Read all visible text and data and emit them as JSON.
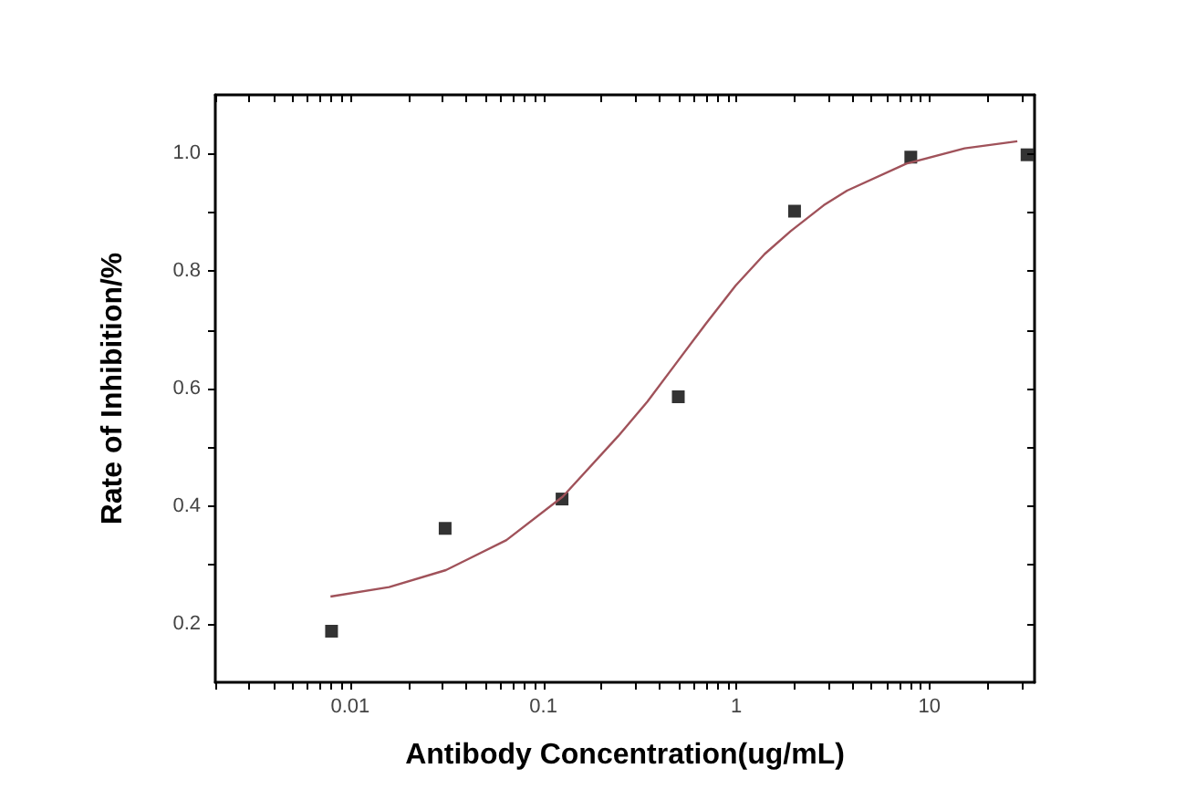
{
  "chart_data": {
    "type": "scatter",
    "xlabel": "Antibody Concentration(ug/mL)",
    "ylabel": "Rate of Inhibition/%",
    "log": "x",
    "grid": false,
    "xlim": [
      0.002,
      35
    ],
    "ylim": [
      0.1,
      1.1
    ],
    "xticks": [
      {
        "value": 0.002,
        "label": null
      },
      {
        "value": 0.003,
        "label": null
      },
      {
        "value": 0.004,
        "label": null
      },
      {
        "value": 0.005,
        "label": null
      },
      {
        "value": 0.006,
        "label": null
      },
      {
        "value": 0.007,
        "label": null
      },
      {
        "value": 0.008,
        "label": null
      },
      {
        "value": 0.009,
        "label": null
      },
      0.01,
      {
        "value": 0.02,
        "label": null
      },
      {
        "value": 0.03,
        "label": null
      },
      {
        "value": 0.04,
        "label": null
      },
      {
        "value": 0.05,
        "label": null
      },
      {
        "value": 0.06,
        "label": null
      },
      {
        "value": 0.07,
        "label": null
      },
      {
        "value": 0.08,
        "label": null
      },
      {
        "value": 0.09,
        "label": null
      },
      0.1,
      {
        "value": 0.2,
        "label": null
      },
      {
        "value": 0.3,
        "label": null
      },
      {
        "value": 0.4,
        "label": null
      },
      {
        "value": 0.5,
        "label": null
      },
      {
        "value": 0.6,
        "label": null
      },
      {
        "value": 0.7,
        "label": null
      },
      {
        "value": 0.8,
        "label": null
      },
      {
        "value": 0.9,
        "label": null
      },
      1,
      {
        "value": 2,
        "label": null
      },
      {
        "value": 3,
        "label": null
      },
      {
        "value": 4,
        "label": null
      },
      {
        "value": 5,
        "label": null
      },
      {
        "value": 6,
        "label": null
      },
      {
        "value": 7,
        "label": null
      },
      {
        "value": 8,
        "label": null
      },
      {
        "value": 9,
        "label": null
      },
      10,
      {
        "value": 20,
        "label": null
      },
      {
        "value": 30,
        "label": null
      }
    ],
    "yticks": [
      0.2,
      {
        "value": 0.3,
        "label": null
      },
      0.4,
      {
        "value": 0.5,
        "label": null
      },
      0.6,
      {
        "value": 0.7,
        "label": null
      },
      0.8,
      {
        "value": 0.9,
        "label": null
      },
      {
        "value": 1.0,
        "label": "1.0"
      }
    ],
    "series": [
      {
        "marker": "square",
        "color": "#000000",
        "x": [
          0.008,
          0.031,
          0.125,
          0.5,
          2,
          8,
          32
        ],
        "values": [
          0.187,
          0.362,
          0.412,
          0.586,
          0.902,
          0.994,
          0.998
        ]
      },
      {
        "type": "line",
        "marker": "none",
        "line_style": "solid",
        "color": "#a0525a",
        "x": [
          0.0079,
          0.0159,
          0.0313,
          0.0644,
          0.126,
          0.244,
          0.346,
          0.477,
          0.697,
          0.989,
          1.4,
          1.91,
          2.83,
          3.74,
          7.59,
          15.2,
          28.5
        ],
        "values": [
          0.246,
          0.262,
          0.291,
          0.342,
          0.416,
          0.519,
          0.578,
          0.639,
          0.711,
          0.775,
          0.829,
          0.868,
          0.912,
          0.937,
          0.983,
          1.009,
          1.021
        ]
      }
    ]
  }
}
